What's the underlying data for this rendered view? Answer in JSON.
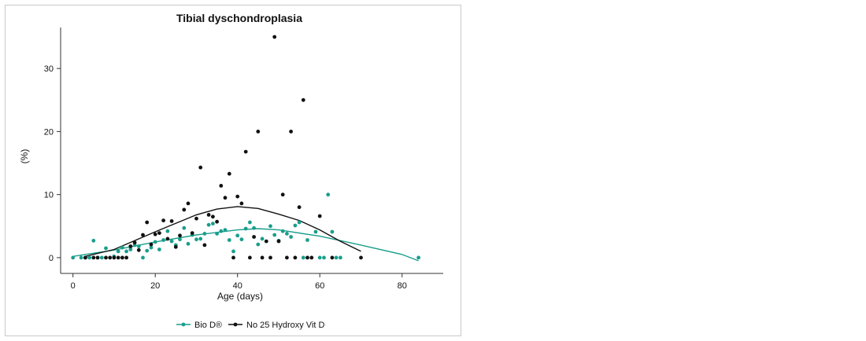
{
  "chart_data": {
    "type": "scatter",
    "title": "Tibial dyschondroplasia",
    "xlabel": "Age (days)",
    "ylabel": "(%)",
    "xlim": [
      -3,
      90
    ],
    "ylim": [
      -2.5,
      36.5
    ],
    "xticks": [
      0,
      20,
      40,
      60,
      80
    ],
    "yticks": [
      0,
      10,
      20,
      30
    ],
    "grid": false,
    "legend_position": "bottom",
    "series": [
      {
        "name": "Bio D®",
        "color": "#1a9e8c",
        "points": [
          [
            0,
            0
          ],
          [
            2,
            0
          ],
          [
            3,
            0
          ],
          [
            4,
            0
          ],
          [
            5,
            2.7
          ],
          [
            6,
            0
          ],
          [
            7,
            0
          ],
          [
            8,
            1.5
          ],
          [
            10,
            0.2
          ],
          [
            11,
            1
          ],
          [
            12,
            1.6
          ],
          [
            13,
            1
          ],
          [
            14,
            1.3
          ],
          [
            15,
            2
          ],
          [
            16,
            1.8
          ],
          [
            17,
            0
          ],
          [
            18,
            1.1
          ],
          [
            19,
            1.6
          ],
          [
            20,
            2.5
          ],
          [
            21,
            1.3
          ],
          [
            22,
            2.8
          ],
          [
            23,
            4.2
          ],
          [
            24,
            2.6
          ],
          [
            25,
            2
          ],
          [
            26,
            2.9
          ],
          [
            27,
            4.7
          ],
          [
            28,
            2.2
          ],
          [
            29,
            3.6
          ],
          [
            30,
            2.9
          ],
          [
            31,
            3
          ],
          [
            32,
            3.8
          ],
          [
            33,
            5.2
          ],
          [
            34,
            5.4
          ],
          [
            35,
            3.8
          ],
          [
            36,
            4.2
          ],
          [
            37,
            4.4
          ],
          [
            38,
            2.8
          ],
          [
            39,
            1
          ],
          [
            40,
            3.5
          ],
          [
            41,
            2.9
          ],
          [
            42,
            4.6
          ],
          [
            43,
            5.6
          ],
          [
            44,
            4.7
          ],
          [
            45,
            2.1
          ],
          [
            46,
            3
          ],
          [
            48,
            5
          ],
          [
            49,
            3.6
          ],
          [
            50,
            2.7
          ],
          [
            51,
            4.2
          ],
          [
            52,
            3.8
          ],
          [
            53,
            3.3
          ],
          [
            54,
            5.1
          ],
          [
            55,
            5.6
          ],
          [
            56,
            0
          ],
          [
            57,
            2.8
          ],
          [
            59,
            4.1
          ],
          [
            60,
            0
          ],
          [
            61,
            0
          ],
          [
            62,
            10
          ],
          [
            63,
            4.1
          ],
          [
            64,
            0
          ],
          [
            65,
            0
          ],
          [
            84,
            0
          ]
        ],
        "trend": [
          [
            0,
            0.2
          ],
          [
            10,
            1.2
          ],
          [
            20,
            2.5
          ],
          [
            30,
            3.6
          ],
          [
            40,
            4.4
          ],
          [
            45,
            4.6
          ],
          [
            50,
            4.4
          ],
          [
            60,
            3.4
          ],
          [
            70,
            2
          ],
          [
            80,
            0.5
          ],
          [
            84,
            -0.5
          ]
        ]
      },
      {
        "name": "No 25 Hydroxy Vit D",
        "color": "#111111",
        "points": [
          [
            3,
            0
          ],
          [
            5,
            0
          ],
          [
            6,
            0
          ],
          [
            8,
            0
          ],
          [
            9,
            0
          ],
          [
            10,
            0
          ],
          [
            11,
            0
          ],
          [
            12,
            0
          ],
          [
            13,
            0
          ],
          [
            14,
            1.8
          ],
          [
            15,
            2.4
          ],
          [
            16,
            1.2
          ],
          [
            17,
            3.6
          ],
          [
            18,
            5.6
          ],
          [
            19,
            2.1
          ],
          [
            20,
            3.7
          ],
          [
            21,
            3.9
          ],
          [
            22,
            5.9
          ],
          [
            23,
            3
          ],
          [
            24,
            5.8
          ],
          [
            25,
            1.7
          ],
          [
            26,
            3.5
          ],
          [
            27,
            7.6
          ],
          [
            28,
            8.6
          ],
          [
            29,
            3.9
          ],
          [
            30,
            6.2
          ],
          [
            31,
            14.3
          ],
          [
            32,
            2
          ],
          [
            33,
            6.8
          ],
          [
            34,
            6.5
          ],
          [
            35,
            5.7
          ],
          [
            36,
            11.4
          ],
          [
            37,
            9.5
          ],
          [
            38,
            13.3
          ],
          [
            39,
            0
          ],
          [
            40,
            9.7
          ],
          [
            41,
            8.6
          ],
          [
            42,
            16.8
          ],
          [
            43,
            0
          ],
          [
            44,
            3.3
          ],
          [
            45,
            20
          ],
          [
            46,
            0
          ],
          [
            47,
            2.6
          ],
          [
            48,
            0
          ],
          [
            49,
            35
          ],
          [
            50,
            2.6
          ],
          [
            51,
            10
          ],
          [
            52,
            0
          ],
          [
            53,
            20
          ],
          [
            54,
            0
          ],
          [
            55,
            8
          ],
          [
            56,
            25
          ],
          [
            57,
            0
          ],
          [
            58,
            0
          ],
          [
            60,
            6.6
          ],
          [
            63,
            0
          ],
          [
            70,
            0
          ]
        ],
        "trend": [
          [
            3,
            0.2
          ],
          [
            10,
            1.3
          ],
          [
            20,
            4.1
          ],
          [
            30,
            6.8
          ],
          [
            35,
            7.7
          ],
          [
            40,
            8.1
          ],
          [
            45,
            7.8
          ],
          [
            50,
            6.9
          ],
          [
            55,
            5.9
          ],
          [
            60,
            4.4
          ],
          [
            65,
            2.6
          ],
          [
            70,
            1
          ]
        ]
      }
    ]
  }
}
